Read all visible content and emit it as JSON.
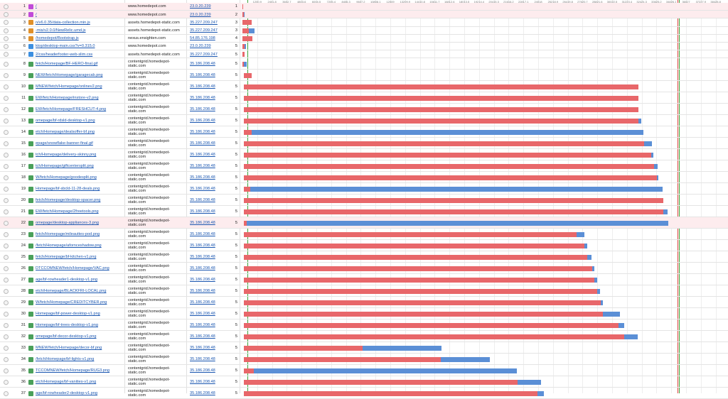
{
  "timeline": {
    "range": [
      0,
      39432
    ],
    "ticks": [
      1200.9,
      2401.8,
      3602.7,
      4803.6,
      6004.5,
      7205.4,
      8406.3,
      9607.2,
      10808.1,
      12009.0,
      13209.9,
      14410.8,
      15611.7,
      16812.6,
      18013.5,
      19214.4,
      20415.3,
      21616.2,
      22817.1,
      24018.0,
      25218.9,
      26419.8,
      27620.7,
      28821.6,
      30022.5,
      31223.4,
      32424.3,
      33625.2,
      34826.1,
      36027.0,
      37227.9,
      38428.8
    ],
    "markers": [
      {
        "color": "#3aa63a",
        "value": 404
      },
      {
        "color": "#e04040",
        "value": 35334
      },
      {
        "color": "#3aa63a",
        "value": 35449
      }
    ]
  },
  "colors": {
    "wait": "#e8676a",
    "download": "#5b8fd6",
    "html": "#c04bd8",
    "js": "#e0902a",
    "css": "#3c8fe0",
    "image": "#4aa05a"
  },
  "requests": [
    {
      "n": 1,
      "url": "/",
      "host": "www.homedepot.com",
      "ip": "23.0.20.239",
      "priority": 1,
      "kind": "html",
      "highlighted": true,
      "start": 0,
      "wait": 58,
      "download": 0
    },
    {
      "n": 2,
      "url": "/",
      "host": "www.homedepot.com",
      "ip": "23.0.20.239",
      "priority": 2,
      "kind": "html",
      "highlighted": true,
      "start": 0,
      "wait": 115,
      "download": 58
    },
    {
      "n": 3,
      "url": "n/v6.0.35/data-collection.min.js",
      "host": "assets.homedepot-static.com",
      "ip": "35.227.209.247",
      "priority": 3,
      "kind": "js",
      "highlighted": false,
      "start": 0,
      "wait": 750,
      "download": 0
    },
    {
      "n": 4,
      "url": "-mis/v2.0.0/NewRelic.umd.js",
      "host": "assets.homedepot-static.com",
      "ip": "35.227.209.247",
      "priority": 3,
      "kind": "js",
      "highlighted": false,
      "start": 0,
      "wait": 519,
      "download": 462
    },
    {
      "n": 5,
      "url": "/homedepot/Bootstrap.js",
      "host": "nexus.ensighten.com",
      "ip": "54.85.176.198",
      "priority": 4,
      "kind": "js",
      "highlighted": false,
      "start": 0,
      "wait": 808,
      "download": 0
    },
    {
      "n": 6,
      "url": "ktop/desktop-main.css?v=0.315.0",
      "host": "www.homedepot.com",
      "ip": "23.0.20.239",
      "priority": 5,
      "kind": "css",
      "highlighted": false,
      "start": 0,
      "wait": 173,
      "download": 115
    },
    {
      "n": 7,
      "url": "2/css/headerfooter-web-slim.css",
      "host": "assets.homedepot-static.com",
      "ip": "35.227.209.247",
      "priority": 5,
      "kind": "css",
      "highlighted": false,
      "start": 0,
      "wait": 173,
      "download": 0
    },
    {
      "n": 8,
      "url": "fetch/Homepage/BF-HERO-final.gif",
      "host": "contentgrid.homedepot-static.com",
      "ip": "35.186.208.48",
      "priority": 5,
      "kind": "image",
      "highlighted": false,
      "start": 0,
      "wait": 115,
      "download": 231
    },
    {
      "n": 9,
      "url": "NEW/fetch/Homepage/garagecab.png",
      "host": "contentgrid.homedepot-static.com",
      "ip": "35.186.208.48",
      "priority": 5,
      "kind": "image",
      "highlighted": false,
      "start": 115,
      "wait": 635,
      "download": 0
    },
    {
      "n": 10,
      "url": "MNEW/fetch/Homepage/onlinev2.png",
      "host": "contentgrid.homedepot-static.com",
      "ip": "35.186.208.48",
      "priority": 5,
      "kind": "image",
      "highlighted": false,
      "start": 115,
      "wait": 32024,
      "download": 0
    },
    {
      "n": 11,
      "url": "EW/fetch/Homepage/instore-v2.png",
      "host": "contentgrid.homedepot-static.com",
      "ip": "35.186.208.48",
      "priority": 5,
      "kind": "image",
      "highlighted": false,
      "start": 115,
      "wait": 32024,
      "download": 0
    },
    {
      "n": 12,
      "url": "EW/fetch/Homepage/FRESHCUT-4.png",
      "host": "contentgrid.homedepot-static.com",
      "ip": "35.186.208.48",
      "priority": 5,
      "kind": "image",
      "highlighted": false,
      "start": 115,
      "wait": 32024,
      "download": 0
    },
    {
      "n": 13,
      "url": "omepage/bf-rdsld-desktop-v1.png",
      "host": "contentgrid.homedepot-static.com",
      "ip": "35.186.208.48",
      "priority": 5,
      "kind": "image",
      "highlighted": false,
      "start": 115,
      "wait": 32024,
      "download": 231
    },
    {
      "n": 14,
      "url": "etch/Homepage/dealsoffer-bf.png",
      "host": "contentgrid.homedepot-static.com",
      "ip": "35.186.208.48",
      "priority": 5,
      "kind": "image",
      "highlighted": false,
      "start": 115,
      "wait": 635,
      "download": 31793
    },
    {
      "n": 15,
      "url": "epage/snowflake-banner-final.gif",
      "host": "contentgrid.homedepot-static.com",
      "ip": "35.186.208.48",
      "priority": 5,
      "kind": "image",
      "highlighted": false,
      "start": 115,
      "wait": 32485,
      "download": 635
    },
    {
      "n": 16,
      "url": "tch/Homepage/delivery-skinny.png",
      "host": "contentgrid.homedepot-static.com",
      "ip": "35.186.208.48",
      "priority": 5,
      "kind": "image",
      "highlighted": false,
      "start": 115,
      "wait": 33062,
      "download": 173
    },
    {
      "n": 17,
      "url": "tch/Homepage/giftcentersplit.png",
      "host": "contentgrid.homedepot-static.com",
      "ip": "35.186.208.48",
      "priority": 5,
      "kind": "image",
      "highlighted": false,
      "start": 115,
      "wait": 33293,
      "download": 289
    },
    {
      "n": 18,
      "url": "W/fetch/Homepage/goodesplit.png",
      "host": "contentgrid.homedepot-static.com",
      "ip": "35.186.208.48",
      "priority": 5,
      "kind": "image",
      "highlighted": false,
      "start": 115,
      "wait": 33524,
      "download": 115
    },
    {
      "n": 19,
      "url": "Homepage/bf-sbcld-11-28-deals.png",
      "host": "contentgrid.homedepot-static.com",
      "ip": "35.186.208.48",
      "priority": 5,
      "kind": "image",
      "highlighted": false,
      "start": 115,
      "wait": 519,
      "download": 33466
    },
    {
      "n": 20,
      "url": "fetch/Homepage/desktop-spacer.png",
      "host": "contentgrid.homedepot-static.com",
      "ip": "35.186.208.48",
      "priority": 5,
      "kind": "image",
      "highlighted": false,
      "start": 115,
      "wait": 34043,
      "download": 0
    },
    {
      "n": 21,
      "url": "EW/fetch/Homepage/2freetools.png",
      "host": "contentgrid.homedepot-static.com",
      "ip": "35.186.208.48",
      "priority": 5,
      "kind": "image",
      "highlighted": false,
      "start": 115,
      "wait": 34043,
      "download": 346
    },
    {
      "n": 22,
      "url": "omepage/desktop-appliances-3.png",
      "host": "contentgrid.homedepot-static.com",
      "ip": "35.186.208.48",
      "priority": 5,
      "kind": "image",
      "highlighted": true,
      "start": 115,
      "wait": 231,
      "download": 34216
    },
    {
      "n": 23,
      "url": "fetch/Homepage/mileauttes-pod.png",
      "host": "contentgrid.homedepot-static.com",
      "ip": "35.186.208.48",
      "priority": 5,
      "kind": "image",
      "highlighted": false,
      "start": 115,
      "wait": 27004,
      "download": 635
    },
    {
      "n": 24,
      "url": "/fetch/Homepage/afornceshadow.png",
      "host": "contentgrid.homedepot-static.com",
      "ip": "35.186.208.48",
      "priority": 5,
      "kind": "image",
      "highlighted": false,
      "start": 115,
      "wait": 27639,
      "download": 231
    },
    {
      "n": 25,
      "url": "fetch/Homepage/bf-kitchen-v1.png",
      "host": "contentgrid.homedepot-static.com",
      "ip": "35.186.208.48",
      "priority": 5,
      "kind": "image",
      "highlighted": false,
      "start": 115,
      "wait": 27870,
      "download": 346
    },
    {
      "n": 26,
      "url": "DTCCOMNEW/fetch/Homepage/VAC.png",
      "host": "contentgrid.homedepot-static.com",
      "ip": "35.186.208.48",
      "priority": 5,
      "kind": "image",
      "highlighted": false,
      "start": 115,
      "wait": 28274,
      "download": 173
    },
    {
      "n": 27,
      "url": "age/bf-rowheader1-desktop-v1.png",
      "host": "contentgrid.homedepot-static.com",
      "ip": "35.186.208.48",
      "priority": 5,
      "kind": "image",
      "highlighted": false,
      "start": 115,
      "wait": 28447,
      "download": 231
    },
    {
      "n": 28,
      "url": "etch/Homepage/BLACKFRI-LOCAL.png",
      "host": "contentgrid.homedepot-static.com",
      "ip": "35.186.208.48",
      "priority": 5,
      "kind": "image",
      "highlighted": false,
      "start": 115,
      "wait": 28678,
      "download": 231
    },
    {
      "n": 29,
      "url": "W/fetch/Homepage/CREDITCYBER.png",
      "host": "contentgrid.homedepot-static.com",
      "ip": "35.186.208.48",
      "priority": 5,
      "kind": "image",
      "highlighted": false,
      "start": 115,
      "wait": 28966,
      "download": 173
    },
    {
      "n": 30,
      "url": "Homepage/bf-power-desktop-v1.png",
      "host": "contentgrid.homedepot-static.com",
      "ip": "35.186.208.48",
      "priority": 5,
      "kind": "image",
      "highlighted": false,
      "start": 115,
      "wait": 29139,
      "download": 1385
    },
    {
      "n": 31,
      "url": "Homepage/bf-trees-desktop-v1.png",
      "host": "contentgrid.homedepot-static.com",
      "ip": "35.186.208.48",
      "priority": 5,
      "kind": "image",
      "highlighted": false,
      "start": 115,
      "wait": 30408,
      "download": 462
    },
    {
      "n": 32,
      "url": "omepage/bf-decor-desktop-v1.png",
      "host": "contentgrid.homedepot-static.com",
      "ip": "35.186.208.48",
      "priority": 5,
      "kind": "image",
      "highlighted": false,
      "start": 115,
      "wait": 30870,
      "download": 1096
    },
    {
      "n": 33,
      "url": "MNEW/fetch/Homepage/decor-bf.png",
      "host": "contentgrid.homedepot-static.com",
      "ip": "35.186.208.48",
      "priority": 5,
      "kind": "image",
      "highlighted": false,
      "start": 115,
      "wait": 9636,
      "download": 6405
    },
    {
      "n": 34,
      "url": "/fetch/Homepage/bf-lights-v1.png",
      "host": "contentgrid.homedepot-static.com",
      "ip": "35.186.208.48",
      "priority": 5,
      "kind": "image",
      "highlighted": false,
      "start": 115,
      "wait": 15983,
      "download": 3981
    },
    {
      "n": 35,
      "url": "TCCOMNEW/fetch/Homepage/RUG3.png",
      "host": "contentgrid.homedepot-static.com",
      "ip": "35.186.208.48",
      "priority": 5,
      "kind": "image",
      "highlighted": false,
      "start": 115,
      "wait": 808,
      "download": 21349
    },
    {
      "n": 36,
      "url": "etch/Homepage/bf-vanities-v1.png",
      "host": "contentgrid.homedepot-static.com",
      "ip": "35.186.208.48",
      "priority": 5,
      "kind": "image",
      "highlighted": false,
      "start": 115,
      "wait": 22214,
      "download": 1904
    },
    {
      "n": 37,
      "url": "age/bf-rowheader2-desktop-v1.png",
      "host": "contentgrid.homedepot-static.com",
      "ip": "35.186.208.48",
      "priority": 5,
      "kind": "image",
      "highlighted": false,
      "start": 115,
      "wait": 23829,
      "download": 519
    }
  ]
}
